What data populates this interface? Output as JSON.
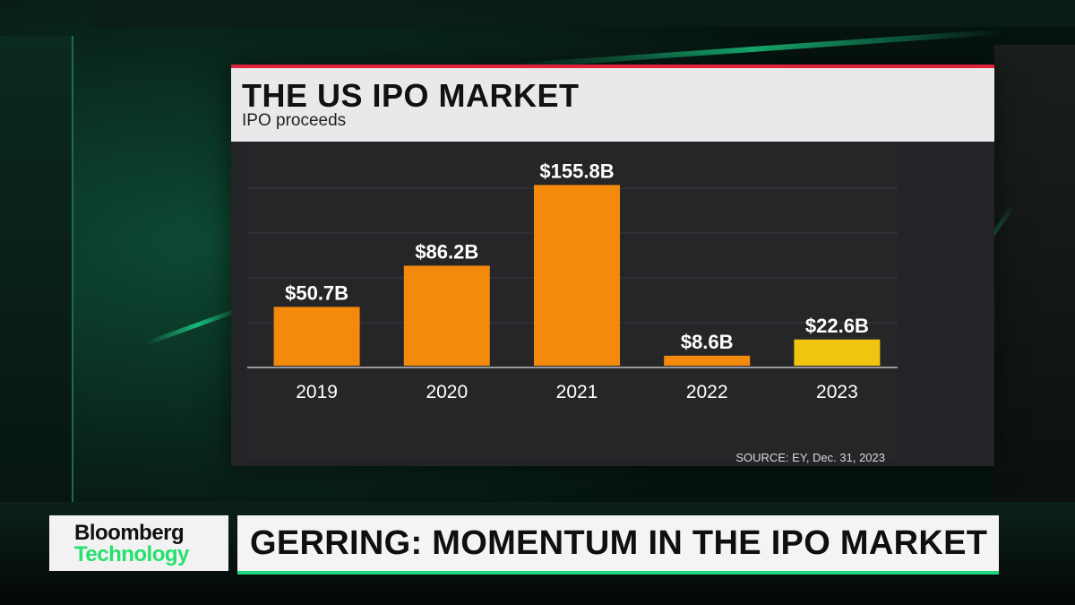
{
  "chart_data": {
    "type": "bar",
    "title": "THE US IPO MARKET",
    "subtitle": "IPO proceeds",
    "categories": [
      "2019",
      "2020",
      "2021",
      "2022",
      "2023"
    ],
    "values": [
      50.7,
      86.2,
      155.8,
      8.6,
      22.6
    ],
    "data_labels": [
      "$50.7B",
      "$86.2B",
      "$155.8B",
      "$8.6B",
      "$22.6B"
    ],
    "units": "$B",
    "ylim": [
      0,
      170
    ],
    "grid": true,
    "legend": "none",
    "colors": {
      "bar": "#f38a0b",
      "highlight_bar": "#f1c40f"
    },
    "highlight_index": 4,
    "source": "SOURCE: EY, Dec. 31, 2023"
  },
  "lower_third": {
    "brand_line1": "Bloomberg",
    "brand_line2": "Technology",
    "headline": "GERRING: MOMENTUM IN THE IPO MARKET"
  },
  "colors": {
    "accent_red": "#e0223a",
    "accent_green": "#1fd77f"
  }
}
